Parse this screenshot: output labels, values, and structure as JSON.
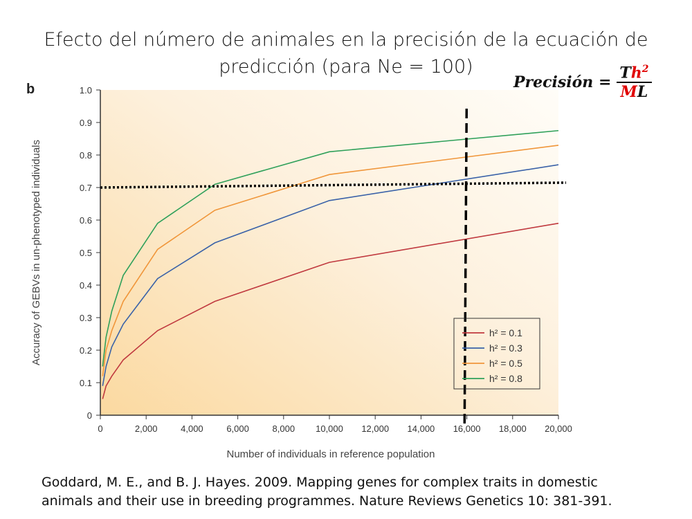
{
  "slide": {
    "title_line1": "Efecto del número de animales en la precisión de la ecuación de",
    "title_line2": "predicción (para Ne = 100)",
    "formula": {
      "lhs": "Precisión =",
      "num_T": "T",
      "num_h": "h",
      "num_exp": "2",
      "den_M": "M",
      "den_L": "L"
    },
    "citation_line1": "Goddard, M. E., and B. J. Hayes. 2009. Mapping genes for complex traits in domestic",
    "citation_line2": "animals and their use in breeding programmes. Nature Reviews Genetics 10: 381-391."
  },
  "chart_data": {
    "type": "line",
    "panel_label": "b",
    "xlabel": "Number of individuals in reference population",
    "ylabel": "Accuracy of GEBVs in un-phenotyped individuals",
    "xlim": [
      0,
      20000
    ],
    "ylim": [
      0,
      1.0
    ],
    "xticks": [
      "0",
      "2,000",
      "4,000",
      "6,000",
      "8,000",
      "10,000",
      "12,000",
      "14,000",
      "16,000",
      "18,000",
      "20,000"
    ],
    "yticks": [
      "0",
      "0.1",
      "0.2",
      "0.3",
      "0.4",
      "0.5",
      "0.6",
      "0.7",
      "0.8",
      "0.9",
      "1.0"
    ],
    "x": [
      100,
      250,
      500,
      1000,
      2500,
      5000,
      10000,
      20000
    ],
    "series": [
      {
        "name": "h² = 0.1",
        "h2": "0.1",
        "color": "#c0393f",
        "values": [
          0.05,
          0.09,
          0.12,
          0.17,
          0.26,
          0.35,
          0.47,
          0.59
        ]
      },
      {
        "name": "h² = 0.3",
        "h2": "0.3",
        "color": "#3a62a8",
        "values": [
          0.09,
          0.15,
          0.21,
          0.28,
          0.42,
          0.53,
          0.66,
          0.77
        ]
      },
      {
        "name": "h² = 0.5",
        "h2": "0.5",
        "color": "#f0963a",
        "values": [
          0.12,
          0.2,
          0.26,
          0.35,
          0.51,
          0.63,
          0.74,
          0.83
        ]
      },
      {
        "name": "h² = 0.8",
        "h2": "0.8",
        "color": "#2ea05a",
        "values": [
          0.15,
          0.24,
          0.32,
          0.43,
          0.59,
          0.71,
          0.81,
          0.875
        ]
      }
    ],
    "annotations": {
      "horizontal_dotted": {
        "y_start": 0.7,
        "y_end": 0.715
      },
      "vertical_dashed": {
        "x": 15900
      }
    },
    "legend": "bottom-right"
  }
}
